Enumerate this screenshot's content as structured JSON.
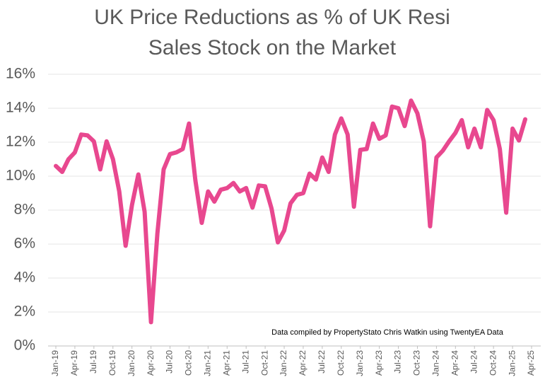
{
  "chart_data": {
    "type": "line",
    "title": [
      "UK Price Reductions as % of UK Resi",
      "Sales Stock on the Market"
    ],
    "annotation": "Data compiled by PropertyStato Chris Watkin using TwentyEA Data",
    "categories": [
      "Jan-19",
      null,
      null,
      "Apr-19",
      null,
      null,
      "Jul-19",
      null,
      null,
      "Oct-19",
      null,
      null,
      "Jan-20",
      null,
      null,
      "Apr-20",
      null,
      null,
      "Jul-20",
      null,
      null,
      "Oct-20",
      null,
      null,
      "Jan-21",
      null,
      null,
      "Apr-21",
      null,
      null,
      "Jul-21",
      null,
      null,
      "Oct-21",
      null,
      null,
      "Jan-22",
      null,
      null,
      "Apr-22",
      null,
      null,
      "Jul-22",
      null,
      null,
      "Oct-22",
      null,
      null,
      "Jan-23",
      null,
      null,
      "Apr-23",
      null,
      null,
      "Jul-23",
      null,
      null,
      "Oct-23",
      null,
      null,
      "Jan-24",
      null,
      null,
      "Apr-24",
      null,
      null,
      "Jul-24",
      null,
      null,
      "Oct-24",
      null,
      null,
      "Jan-25",
      null,
      null,
      "Apr-25"
    ],
    "series": [
      {
        "color": "#e8488f",
        "values": [
          10.6,
          10.25,
          11.0,
          11.4,
          12.45,
          12.4,
          12.05,
          10.4,
          12.05,
          11.0,
          9.1,
          5.9,
          8.3,
          10.1,
          7.9,
          1.4,
          6.6,
          10.4,
          11.3,
          11.4,
          11.6,
          13.1,
          9.75,
          7.25,
          9.1,
          8.5,
          9.2,
          9.3,
          9.6,
          9.1,
          9.3,
          8.15,
          9.45,
          9.4,
          8.1,
          6.1,
          6.8,
          8.4,
          8.9,
          9.0,
          10.15,
          9.8,
          11.1,
          10.25,
          12.45,
          13.4,
          12.45,
          8.2,
          11.55,
          11.6,
          13.1,
          12.2,
          12.4,
          14.1,
          14.0,
          12.95,
          14.45,
          13.7,
          12.05,
          7.05,
          11.1,
          11.5,
          12.05,
          12.55,
          13.3,
          11.7,
          12.8,
          11.7,
          13.9,
          13.3,
          11.6,
          7.85,
          12.8,
          12.1,
          13.35,
          null
        ]
      }
    ],
    "ylim": [
      0,
      16
    ],
    "yticks": [
      {
        "value": 0,
        "label": "0%"
      },
      {
        "value": 2,
        "label": "2%"
      },
      {
        "value": 4,
        "label": "4%"
      },
      {
        "value": 6,
        "label": "6%"
      },
      {
        "value": 8,
        "label": "8%"
      },
      {
        "value": 10,
        "label": "10%"
      },
      {
        "value": 12,
        "label": "12%"
      },
      {
        "value": 14,
        "label": "14%"
      },
      {
        "value": 16,
        "label": "16%"
      }
    ],
    "grid": true
  }
}
